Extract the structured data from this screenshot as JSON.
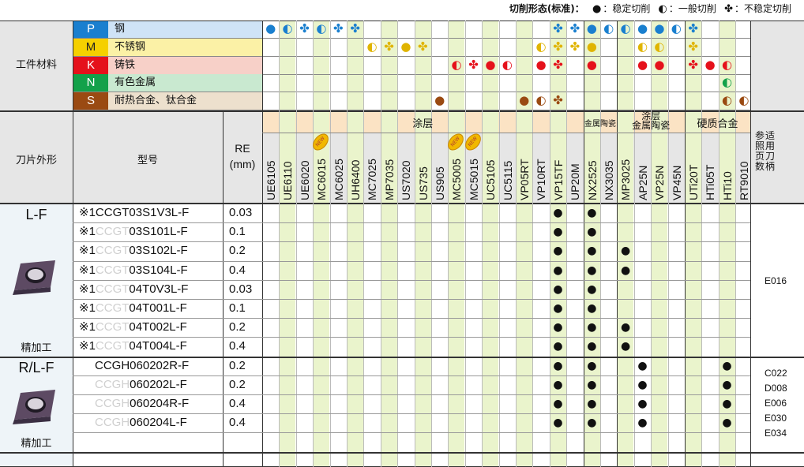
{
  "legend": {
    "title": "切削形态(标准)：",
    "stable_sym": "●",
    "stable": "：稳定切削",
    "general_sym": "◐",
    "general": "：一般切削",
    "unstable_sym": "✤",
    "unstable": "：不稳定切削"
  },
  "header": {
    "work_material": "工件材料",
    "insert_shape": "刀片外形",
    "model": "型号",
    "re": "RE",
    "re_unit": "(mm)",
    "ref_page": "参适\n照用\n页刀\n数柄"
  },
  "materials": [
    {
      "code": "P",
      "name": "钢",
      "color": "#1a7fcf",
      "bg": "#cfe3f6"
    },
    {
      "code": "M",
      "name": "不锈钢",
      "color": "#f5d000",
      "bg": "#fbf1a6"
    },
    {
      "code": "K",
      "name": "铸铁",
      "color": "#e5111b",
      "bg": "#f7d0c8"
    },
    {
      "code": "N",
      "name": "有色金属",
      "color": "#13a14a",
      "bg": "#c9e9d0"
    },
    {
      "code": "S",
      "name": "耐热合金、钛合金",
      "color": "#9a4a12",
      "bg": "#ede0cd"
    }
  ],
  "groups": {
    "coating": "涂层",
    "cermet": "金属陶瓷",
    "coated_cermet": "涂层\n金属陶瓷",
    "carbide": "硬质合金"
  },
  "grades": [
    "UE6105",
    "UE6110",
    "UE6020",
    "MC6015",
    "MC6025",
    "UH6400",
    "MC7025",
    "MP7035",
    "US7020",
    "US735",
    "US905",
    "MC5005",
    "MC5015",
    "UC5105",
    "UC5115",
    "VP05RT",
    "VP10RT",
    "VP15TF",
    "UP20M",
    "NX2525",
    "NX3035",
    "MP3025",
    "AP25N",
    "VP25N",
    "VP45N",
    "UTi20T",
    "HTi05T",
    "HTi10",
    "RT9010"
  ],
  "new_badge": "NEW",
  "material_marks": {
    "P": [
      [
        "0",
        "●"
      ],
      [
        "1",
        "◐"
      ],
      [
        "2",
        "✤"
      ],
      [
        "3",
        "◐"
      ],
      [
        "4",
        "✤"
      ],
      [
        "5",
        "✤"
      ],
      [
        "17",
        "✤"
      ],
      [
        "18",
        "✤"
      ],
      [
        "19",
        "●"
      ],
      [
        "20",
        "◐"
      ],
      [
        "21",
        "◐"
      ],
      [
        "22",
        "●"
      ],
      [
        "23",
        "●"
      ],
      [
        "24",
        "◐"
      ],
      [
        "25",
        "✤"
      ]
    ],
    "M": [
      [
        "6",
        "◐"
      ],
      [
        "7",
        "✤"
      ],
      [
        "8",
        "●"
      ],
      [
        "9",
        "✤"
      ],
      [
        "16",
        "◐"
      ],
      [
        "17",
        "✤"
      ],
      [
        "18",
        "✤"
      ],
      [
        "19",
        "●"
      ],
      [
        "22",
        "◐"
      ],
      [
        "23",
        "◐"
      ],
      [
        "25",
        "✤"
      ]
    ],
    "K": [
      [
        "11",
        "◐"
      ],
      [
        "12",
        "✤"
      ],
      [
        "13",
        "●"
      ],
      [
        "14",
        "◐"
      ],
      [
        "16",
        "●"
      ],
      [
        "17",
        "✤"
      ],
      [
        "19",
        "●"
      ],
      [
        "22",
        "●"
      ],
      [
        "23",
        "●"
      ],
      [
        "25",
        "✤"
      ],
      [
        "26",
        "●"
      ],
      [
        "27",
        "◐"
      ]
    ],
    "N": [
      [
        "27",
        "◐"
      ]
    ],
    "S": [
      [
        "10",
        "●"
      ],
      [
        "15",
        "●"
      ],
      [
        "16",
        "◐"
      ],
      [
        "17",
        "✤"
      ],
      [
        "27",
        "◐"
      ],
      [
        "28",
        "◐"
      ]
    ]
  },
  "sections": [
    {
      "shape": "L-F",
      "finish": "精加工",
      "pages": [
        "E016"
      ],
      "rows": [
        {
          "prefix": "※1",
          "ghost": "",
          "main": "CCGT03S1V3L-F",
          "re": "0.03",
          "marks": [
            "17",
            "19"
          ]
        },
        {
          "prefix": "※1",
          "ghost": "CCGT",
          "main": "03S101L-F",
          "re": "0.1",
          "marks": [
            "17",
            "19"
          ]
        },
        {
          "prefix": "※1",
          "ghost": "CCGT",
          "main": "03S102L-F",
          "re": "0.2",
          "marks": [
            "17",
            "19",
            "21"
          ]
        },
        {
          "prefix": "※1",
          "ghost": "CCGT",
          "main": "03S104L-F",
          "re": "0.4",
          "marks": [
            "17",
            "19",
            "21"
          ]
        },
        {
          "prefix": "※1",
          "ghost": "CCGT",
          "main": "04T0V3L-F",
          "re": "0.03",
          "marks": [
            "17",
            "19"
          ]
        },
        {
          "prefix": "※1",
          "ghost": "CCGT",
          "main": "04T001L-F",
          "re": "0.1",
          "marks": [
            "17",
            "19"
          ]
        },
        {
          "prefix": "※1",
          "ghost": "CCGT",
          "main": "04T002L-F",
          "re": "0.2",
          "marks": [
            "17",
            "19",
            "21"
          ]
        },
        {
          "prefix": "※1",
          "ghost": "CCGT",
          "main": "04T004L-F",
          "re": "0.4",
          "marks": [
            "17",
            "19",
            "21"
          ]
        }
      ]
    },
    {
      "shape": "R/L-F",
      "finish": "精加工",
      "pages": [
        "C022",
        "D008",
        "E006",
        "E030",
        "E034"
      ],
      "rows": [
        {
          "prefix": "",
          "ghost": "",
          "main": "CCGH060202R-F",
          "re": "0.2",
          "marks": [
            "17",
            "19",
            "22",
            "27"
          ]
        },
        {
          "prefix": "",
          "ghost": "CCGH",
          "main": "060202L-F",
          "re": "0.2",
          "marks": [
            "17",
            "19",
            "22",
            "27"
          ]
        },
        {
          "prefix": "",
          "ghost": "CCGH",
          "main": "060204R-F",
          "re": "0.4",
          "marks": [
            "17",
            "19",
            "22",
            "27"
          ]
        },
        {
          "prefix": "",
          "ghost": "CCGH",
          "main": "060204L-F",
          "re": "0.4",
          "marks": [
            "17",
            "19",
            "22",
            "27"
          ]
        }
      ]
    }
  ],
  "colors": {
    "header_bg": "#e6e6e6",
    "coating_bg": "#fbe3c4",
    "stripe": "#eaf4cc",
    "line": "#555555",
    "side_bg": "#eef4f8"
  }
}
